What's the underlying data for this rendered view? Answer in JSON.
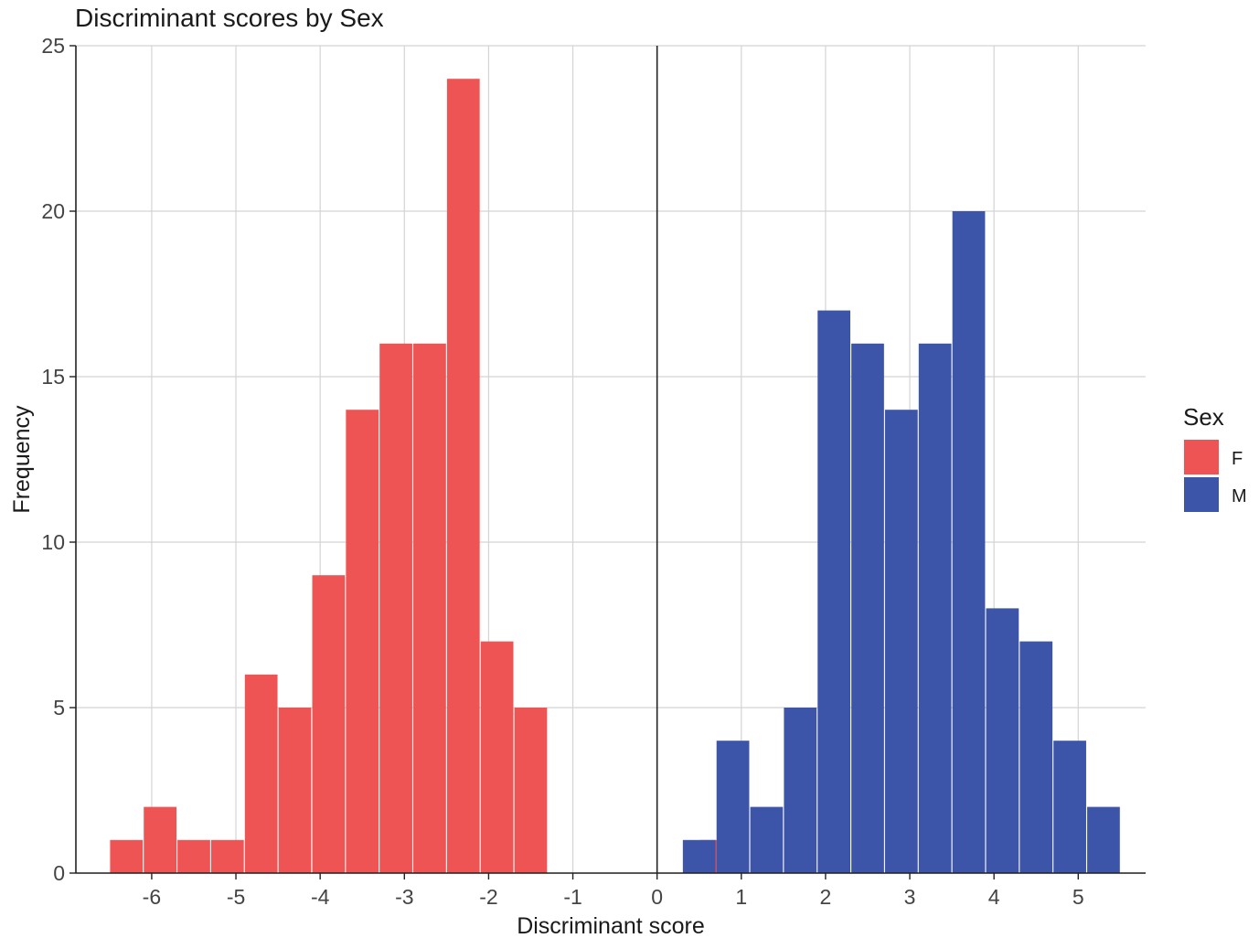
{
  "chart_data": {
    "type": "bar",
    "title": "Discriminant scores by Sex",
    "xlabel": "Discriminant score",
    "ylabel": "Frequency",
    "xlim": [
      -6.9,
      5.8
    ],
    "ylim": [
      0,
      25
    ],
    "grid": true,
    "x_ticks": [
      -6,
      -5,
      -4,
      -3,
      -2,
      -1,
      0,
      1,
      2,
      3,
      4,
      5
    ],
    "y_ticks": [
      0,
      5,
      10,
      15,
      20,
      25
    ],
    "vline_x": 0,
    "legend": {
      "title": "Sex",
      "placement": "right"
    },
    "colors": {
      "F": "#ef5454",
      "M": "#3c55a8"
    },
    "series": [
      {
        "name": "F",
        "x": [
          -6.3,
          -5.9,
          -5.5,
          -5.1,
          -4.7,
          -4.3,
          -3.9,
          -3.5,
          -3.1,
          -2.7,
          -2.3,
          -1.9,
          -1.5,
          0.7
        ],
        "values": [
          1,
          2,
          1,
          1,
          6,
          5,
          9,
          14,
          16,
          16,
          24,
          7,
          5,
          1
        ]
      },
      {
        "name": "M",
        "x": [
          0.5,
          0.9,
          1.3,
          1.7,
          2.1,
          2.5,
          2.9,
          3.3,
          3.7,
          4.1,
          4.5,
          4.9,
          5.3
        ],
        "values": [
          1,
          4,
          2,
          5,
          17,
          16,
          14,
          16,
          20,
          8,
          7,
          4,
          2
        ]
      }
    ]
  }
}
